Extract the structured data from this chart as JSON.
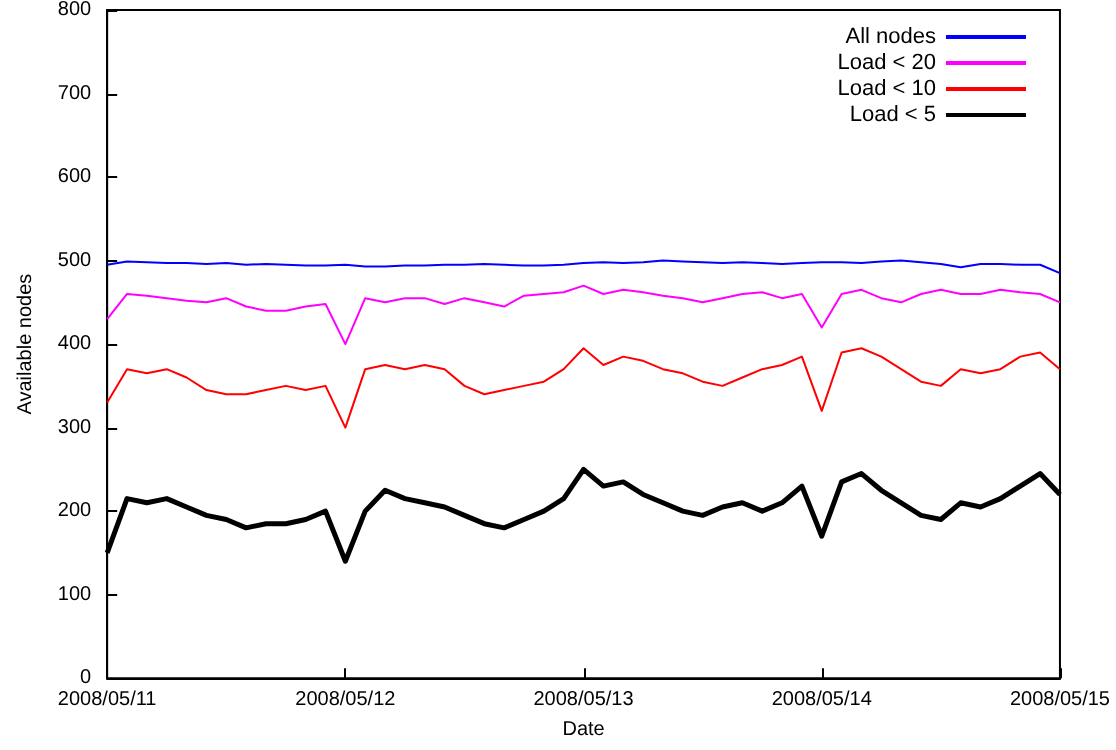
{
  "chart_data": {
    "type": "line",
    "xlabel": "Date",
    "ylabel": "Available nodes",
    "x": [
      "2008-05-11T00:00",
      "2008-05-11T02:00",
      "2008-05-11T04:00",
      "2008-05-11T06:00",
      "2008-05-11T08:00",
      "2008-05-11T10:00",
      "2008-05-11T12:00",
      "2008-05-11T14:00",
      "2008-05-11T16:00",
      "2008-05-11T18:00",
      "2008-05-11T20:00",
      "2008-05-11T22:00",
      "2008-05-12T00:00",
      "2008-05-12T02:00",
      "2008-05-12T04:00",
      "2008-05-12T06:00",
      "2008-05-12T08:00",
      "2008-05-12T10:00",
      "2008-05-12T12:00",
      "2008-05-12T14:00",
      "2008-05-12T16:00",
      "2008-05-12T18:00",
      "2008-05-12T20:00",
      "2008-05-12T22:00",
      "2008-05-13T00:00",
      "2008-05-13T02:00",
      "2008-05-13T04:00",
      "2008-05-13T06:00",
      "2008-05-13T08:00",
      "2008-05-13T10:00",
      "2008-05-13T12:00",
      "2008-05-13T14:00",
      "2008-05-13T16:00",
      "2008-05-13T18:00",
      "2008-05-13T20:00",
      "2008-05-13T22:00",
      "2008-05-14T00:00",
      "2008-05-14T02:00",
      "2008-05-14T04:00",
      "2008-05-14T06:00",
      "2008-05-14T08:00",
      "2008-05-14T10:00",
      "2008-05-14T12:00",
      "2008-05-14T14:00",
      "2008-05-14T16:00",
      "2008-05-14T18:00",
      "2008-05-14T20:00",
      "2008-05-14T22:00",
      "2008-05-15T00:00"
    ],
    "series": [
      {
        "name": "All nodes",
        "color": "#0000ff",
        "values": [
          495,
          499,
          498,
          497,
          497,
          496,
          497,
          495,
          496,
          495,
          494,
          494,
          495,
          493,
          493,
          494,
          494,
          495,
          495,
          496,
          495,
          494,
          494,
          495,
          497,
          498,
          497,
          498,
          500,
          499,
          498,
          497,
          498,
          497,
          496,
          497,
          498,
          498,
          497,
          499,
          500,
          498,
          496,
          492,
          496,
          496,
          495,
          495,
          485
        ]
      },
      {
        "name": "Load < 20",
        "color": "#ff00ff",
        "values": [
          430,
          460,
          458,
          455,
          452,
          450,
          455,
          445,
          440,
          440,
          445,
          448,
          400,
          455,
          450,
          455,
          455,
          448,
          455,
          450,
          445,
          458,
          460,
          462,
          470,
          460,
          465,
          462,
          458,
          455,
          450,
          455,
          460,
          462,
          455,
          460,
          420,
          460,
          465,
          455,
          450,
          460,
          465,
          460,
          460,
          465,
          462,
          460,
          450
        ]
      },
      {
        "name": "Load < 10",
        "color": "#ff0000",
        "values": [
          330,
          370,
          365,
          370,
          360,
          345,
          340,
          340,
          345,
          350,
          345,
          350,
          300,
          370,
          375,
          370,
          375,
          370,
          350,
          340,
          345,
          350,
          355,
          370,
          395,
          375,
          385,
          380,
          370,
          365,
          355,
          350,
          360,
          370,
          375,
          385,
          320,
          390,
          395,
          385,
          370,
          355,
          350,
          370,
          365,
          370,
          385,
          390,
          370
        ]
      },
      {
        "name": "Load < 5",
        "color": "#000000",
        "values": [
          150,
          215,
          210,
          215,
          205,
          195,
          190,
          180,
          185,
          185,
          190,
          200,
          140,
          200,
          225,
          215,
          210,
          205,
          195,
          185,
          180,
          190,
          200,
          215,
          250,
          230,
          235,
          220,
          210,
          200,
          195,
          205,
          210,
          200,
          210,
          230,
          170,
          235,
          245,
          225,
          210,
          195,
          190,
          210,
          205,
          215,
          230,
          245,
          220
        ]
      }
    ],
    "xlim": [
      "2008-05-11",
      "2008-05-15"
    ],
    "xticks": [
      {
        "value": "2008-05-11",
        "label": "2008/05/11"
      },
      {
        "value": "2008-05-12",
        "label": "2008/05/12"
      },
      {
        "value": "2008-05-13",
        "label": "2008/05/13"
      },
      {
        "value": "2008-05-14",
        "label": "2008/05/14"
      },
      {
        "value": "2008-05-15",
        "label": "2008/05/15"
      }
    ],
    "ylim": [
      0,
      800
    ],
    "yticks": [
      0,
      100,
      200,
      300,
      400,
      500,
      600,
      700,
      800
    ],
    "legend": "top right",
    "marker": "none",
    "line_style": "solid"
  }
}
